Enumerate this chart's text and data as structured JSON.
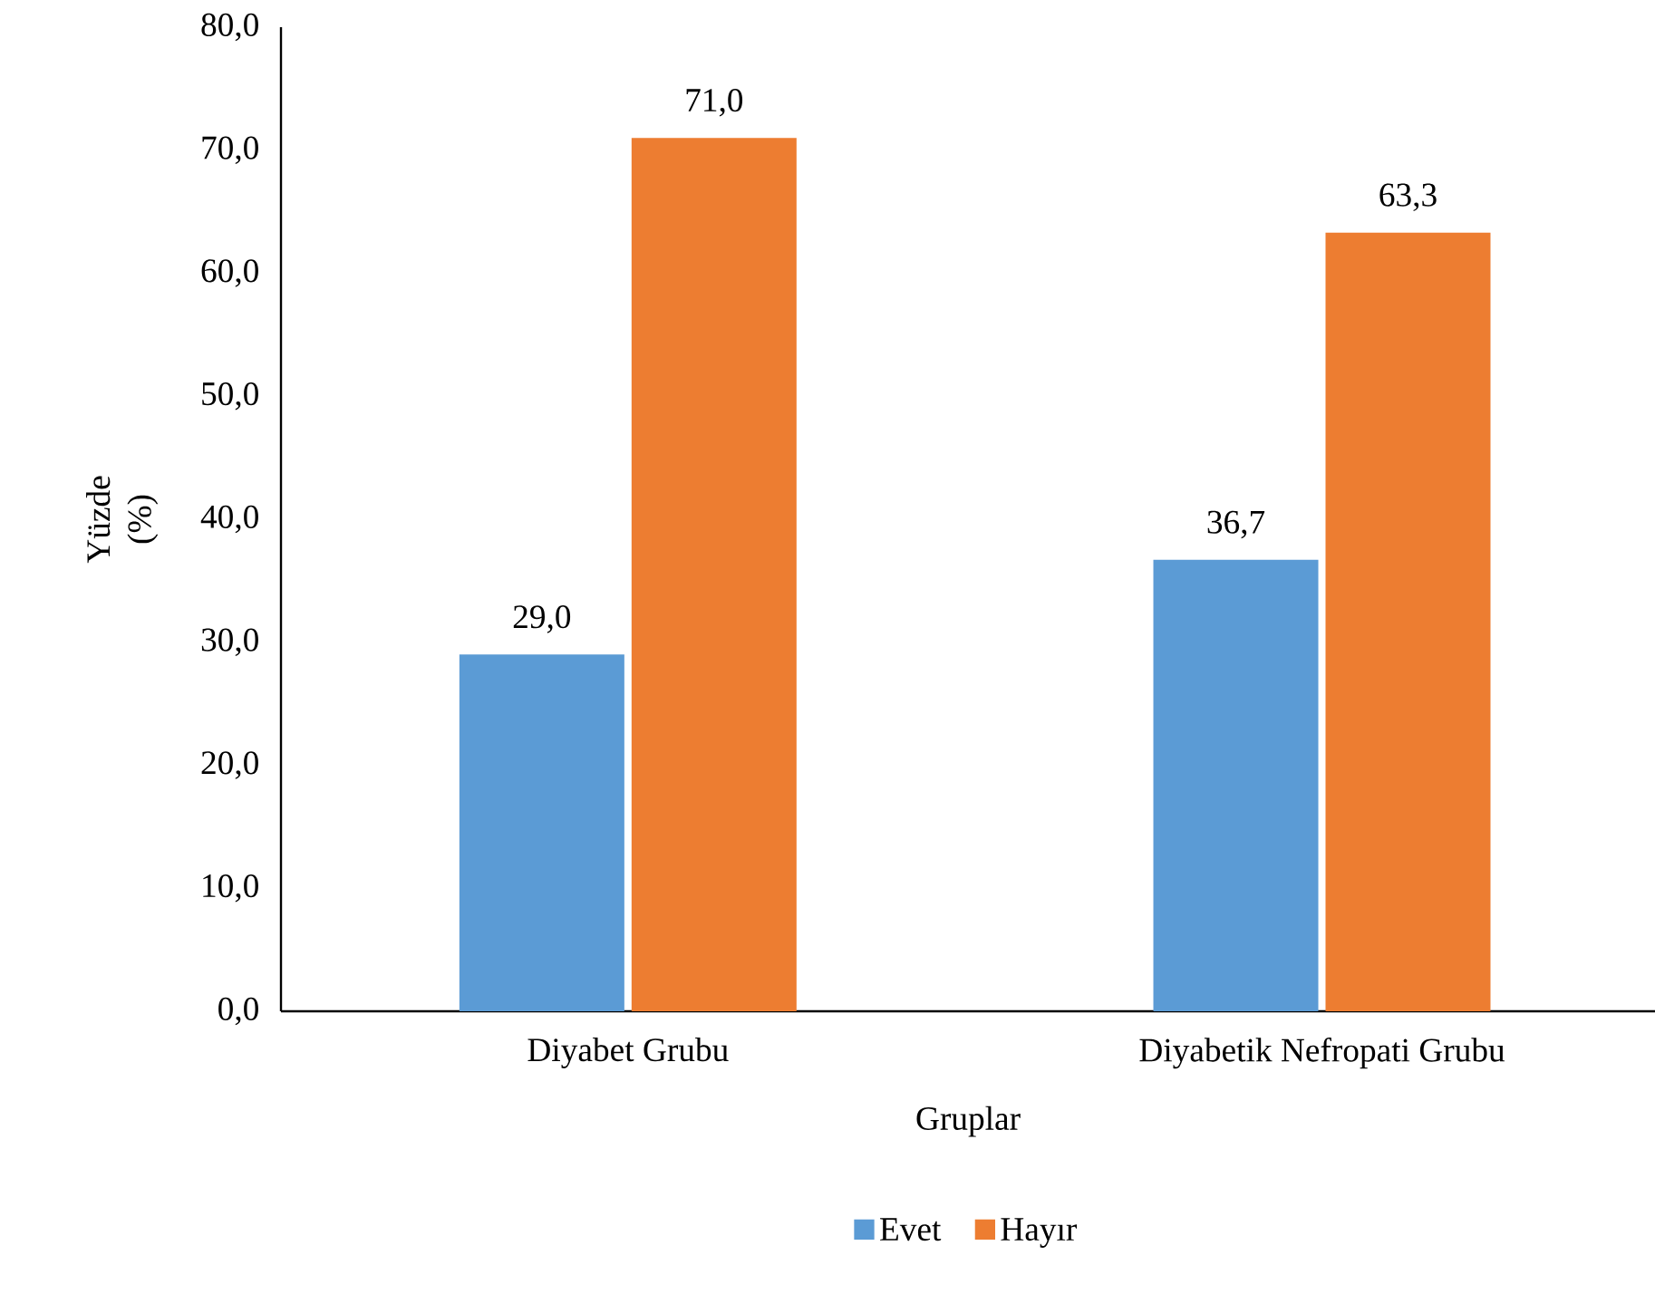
{
  "chart_data": {
    "type": "bar",
    "xlabel": "Gruplar",
    "ylabel": "Yüzde (%)",
    "categories": [
      "Diyabet Grubu",
      "Diyabetik Nefropati Grubu"
    ],
    "series": [
      {
        "name": "Evet",
        "color": "#5b9bd5",
        "values": [
          29.0,
          36.7
        ],
        "value_labels": [
          "29,0",
          "36,7"
        ]
      },
      {
        "name": "Hayır",
        "color": "#ed7d31",
        "values": [
          71.0,
          63.3
        ],
        "value_labels": [
          "71,0",
          "63,3"
        ]
      }
    ],
    "ylim": [
      0,
      80
    ],
    "yticks": [
      {
        "value": 0,
        "label": "0,0"
      },
      {
        "value": 10,
        "label": "10,0"
      },
      {
        "value": 20,
        "label": "20,0"
      },
      {
        "value": 30,
        "label": "30,0"
      },
      {
        "value": 40,
        "label": "40,0"
      },
      {
        "value": 50,
        "label": "50,0"
      },
      {
        "value": 60,
        "label": "60,0"
      },
      {
        "value": 70,
        "label": "70,0"
      },
      {
        "value": 80,
        "label": "80,0"
      }
    ],
    "grid": false,
    "legend": "bottom"
  }
}
